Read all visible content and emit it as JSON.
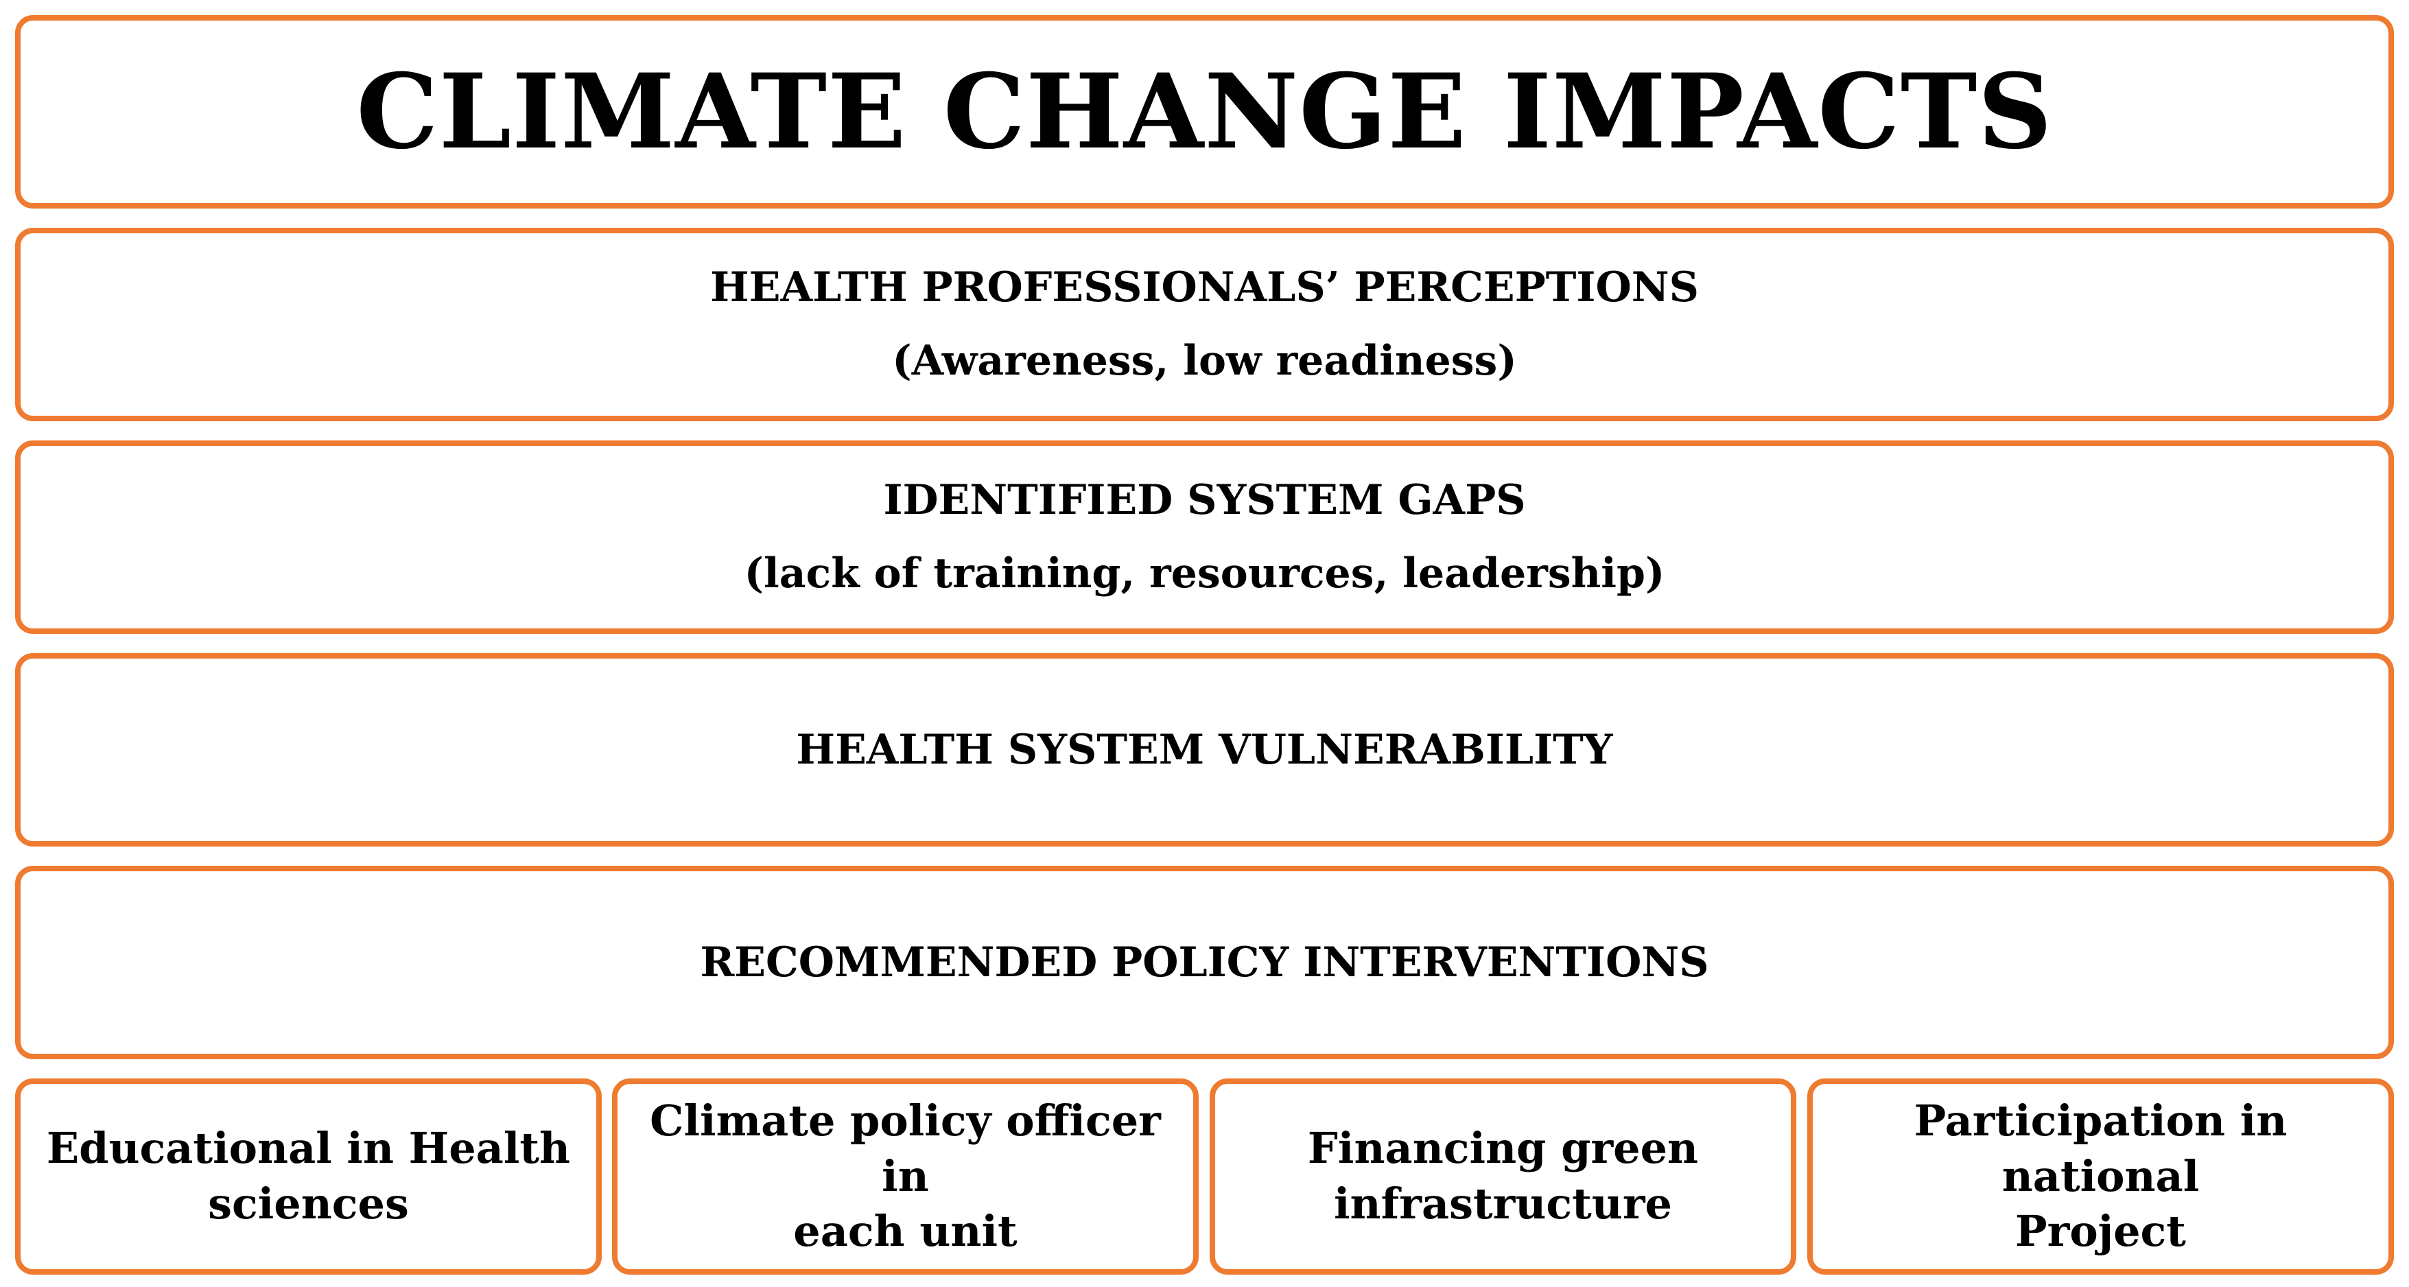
{
  "title": "CLIMATE CHANGE IMPACTS",
  "levels": [
    {
      "heading": "HEALTH PROFESSIONALS’ PERCEPTIONS",
      "detail": "(Awareness, low readiness)"
    },
    {
      "heading": "IDENTIFIED SYSTEM GAPS",
      "detail": "(lack of training, resources, leadership)"
    },
    {
      "heading": "HEALTH SYSTEM VULNERABILITY",
      "detail": ""
    },
    {
      "heading": "RECOMMENDED POLICY INTERVENTIONS",
      "detail": ""
    }
  ],
  "interventions": [
    {
      "line1": "Educational in Health",
      "line2": "sciences"
    },
    {
      "line1": "Climate policy officer in",
      "line2": "each unit"
    },
    {
      "line1": "Financing green",
      "line2": "infrastructure"
    },
    {
      "line1": "Participation in national",
      "line2": "Project"
    }
  ],
  "colors": {
    "border": "#ee7b30",
    "text": "#000000",
    "background": "#ffffff"
  }
}
